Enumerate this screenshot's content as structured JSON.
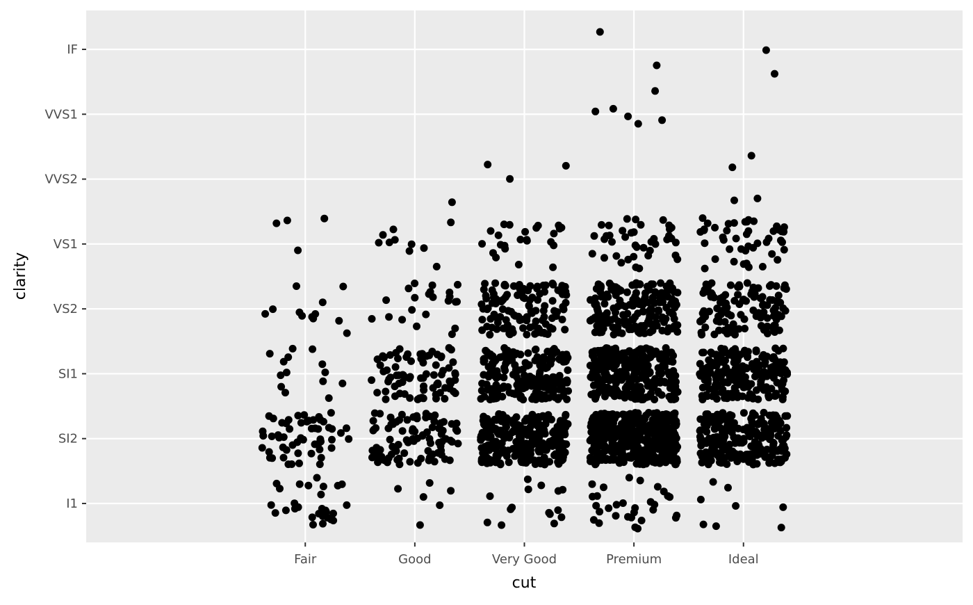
{
  "chart_data": {
    "type": "scatter",
    "subtype": "jitter",
    "title": "",
    "xlabel": "cut",
    "ylabel": "clarity",
    "categories_x": [
      "Fair",
      "Good",
      "Very Good",
      "Premium",
      "Ideal"
    ],
    "categories_y": [
      "I1",
      "SI2",
      "SI1",
      "VS2",
      "VS1",
      "VVS2",
      "VVS1",
      "IF"
    ],
    "xlim": [
      -1,
      7
    ],
    "ylim": [
      0.4,
      8.6
    ],
    "jitter": {
      "width": 0.4,
      "height": 0.4
    },
    "grid": true,
    "point_color": "#000000",
    "panel_background": "#EBEBEB",
    "grid_color": "#FFFFFF",
    "counts": [
      {
        "cut": "Fair",
        "clarity": {
          "I1": 28,
          "SI2": 55,
          "SI1": 14,
          "VS2": 12,
          "VS1": 4,
          "VVS2": 0,
          "VVS1": 0,
          "IF": 0
        }
      },
      {
        "cut": "Good",
        "clarity": {
          "I1": 6,
          "SI2": 90,
          "SI1": 80,
          "VS2": 22,
          "VS1": 10,
          "VVS2": 1,
          "VVS1": 0,
          "IF": 0
        }
      },
      {
        "cut": "Very Good",
        "clarity": {
          "I1": 15,
          "SI2": 250,
          "SI1": 200,
          "VS2": 120,
          "VS1": 25,
          "VVS2": 3,
          "VVS1": 0,
          "IF": 0
        }
      },
      {
        "cut": "Premium",
        "clarity": {
          "I1": 30,
          "SI2": 400,
          "SI1": 250,
          "VS2": 180,
          "VS1": 40,
          "VVS2": 0,
          "VVS1": 6,
          "IF": 2
        }
      },
      {
        "cut": "Ideal",
        "clarity": {
          "I1": 8,
          "SI2": 250,
          "SI1": 200,
          "VS2": 120,
          "VS1": 45,
          "VVS2": 4,
          "VVS1": 0,
          "IF": 2
        }
      }
    ]
  }
}
